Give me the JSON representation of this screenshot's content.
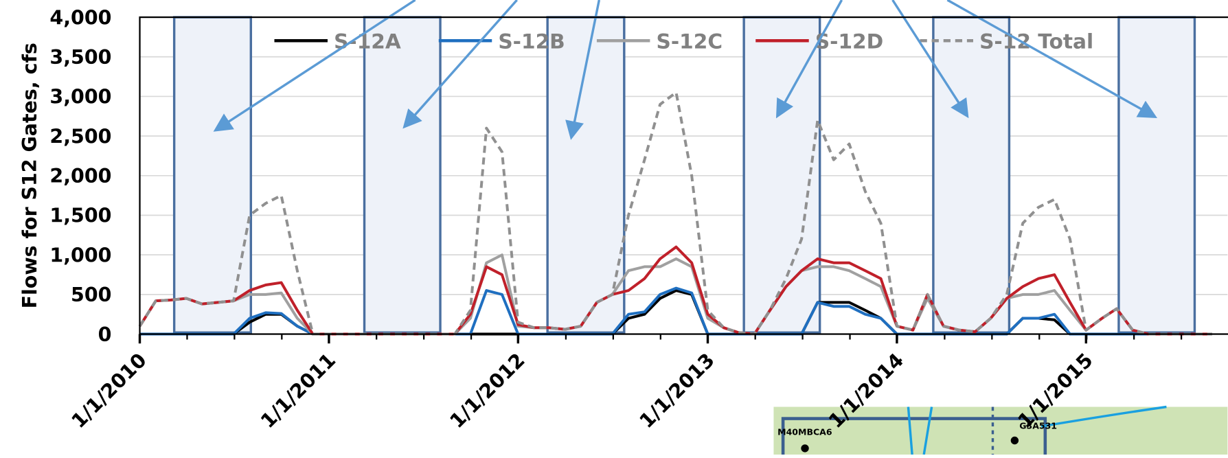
{
  "chart_data": {
    "type": "line",
    "y_label": "Flows for S12 Gates, cfs",
    "x": [
      "1/1/2010",
      "2/1/2010",
      "3/1/2010",
      "4/1/2010",
      "5/1/2010",
      "6/1/2010",
      "7/1/2010",
      "8/1/2010",
      "9/1/2010",
      "10/1/2010",
      "11/1/2010",
      "12/1/2010",
      "1/1/2011",
      "2/1/2011",
      "3/1/2011",
      "4/1/2011",
      "5/1/2011",
      "6/1/2011",
      "7/1/2011",
      "8/1/2011",
      "9/1/2011",
      "10/1/2011",
      "11/1/2011",
      "12/1/2011",
      "1/1/2012",
      "2/1/2012",
      "3/1/2012",
      "4/1/2012",
      "5/1/2012",
      "6/1/2012",
      "7/1/2012",
      "8/1/2012",
      "9/1/2012",
      "10/1/2012",
      "11/1/2012",
      "12/1/2012",
      "1/1/2013",
      "2/1/2013",
      "3/1/2013",
      "4/1/2013",
      "5/1/2013",
      "6/1/2013",
      "7/1/2013",
      "8/1/2013",
      "9/1/2013",
      "10/1/2013",
      "11/1/2013",
      "12/1/2013",
      "1/1/2014",
      "2/1/2014",
      "3/1/2014",
      "4/1/2014",
      "5/1/2014",
      "6/1/2014",
      "7/1/2014",
      "8/1/2014",
      "9/1/2014",
      "10/1/2014",
      "11/1/2014",
      "12/1/2014",
      "1/1/2015",
      "2/1/2015",
      "3/1/2015",
      "4/1/2015",
      "5/1/2015",
      "6/1/2015",
      "7/1/2015",
      "8/1/2015",
      "9/1/2015"
    ],
    "series": [
      {
        "name": "S-12A",
        "color": "#000000",
        "dash": false,
        "values": [
          0,
          0,
          0,
          0,
          0,
          0,
          0,
          150,
          250,
          250,
          100,
          0,
          0,
          0,
          0,
          0,
          0,
          0,
          0,
          0,
          0,
          0,
          0,
          0,
          0,
          0,
          0,
          0,
          0,
          0,
          0,
          200,
          250,
          450,
          550,
          500,
          0,
          0,
          0,
          0,
          0,
          0,
          0,
          400,
          400,
          400,
          300,
          200,
          0,
          0,
          0,
          0,
          0,
          0,
          0,
          0,
          200,
          200,
          180,
          0,
          0,
          0,
          0,
          0,
          0,
          0,
          0,
          0,
          0
        ]
      },
      {
        "name": "S-12B",
        "color": "#1f6fc0",
        "dash": false,
        "values": [
          0,
          0,
          0,
          0,
          0,
          0,
          0,
          200,
          270,
          260,
          100,
          0,
          0,
          0,
          0,
          0,
          0,
          0,
          0,
          0,
          0,
          0,
          550,
          500,
          0,
          0,
          0,
          0,
          0,
          0,
          0,
          250,
          280,
          500,
          580,
          520,
          0,
          0,
          0,
          0,
          0,
          0,
          0,
          400,
          350,
          350,
          250,
          200,
          0,
          0,
          0,
          0,
          0,
          0,
          0,
          0,
          200,
          200,
          250,
          0,
          0,
          0,
          0,
          0,
          0,
          0,
          0,
          0,
          0
        ]
      },
      {
        "name": "S-12C",
        "color": "#a0a0a0",
        "dash": false,
        "values": [
          100,
          420,
          430,
          450,
          380,
          400,
          420,
          500,
          500,
          520,
          200,
          0,
          0,
          0,
          0,
          0,
          0,
          0,
          0,
          0,
          0,
          200,
          900,
          1000,
          100,
          80,
          80,
          60,
          100,
          400,
          500,
          800,
          850,
          850,
          950,
          850,
          200,
          80,
          20,
          0,
          300,
          600,
          800,
          850,
          850,
          800,
          700,
          600,
          100,
          50,
          450,
          100,
          50,
          30,
          200,
          450,
          500,
          500,
          550,
          300,
          50,
          200,
          320,
          50,
          0,
          0,
          0,
          0,
          0
        ]
      },
      {
        "name": "S-12D",
        "color": "#c0202a",
        "dash": false,
        "values": [
          100,
          420,
          430,
          450,
          380,
          400,
          420,
          550,
          620,
          650,
          300,
          0,
          0,
          0,
          0,
          0,
          0,
          0,
          0,
          0,
          0,
          250,
          850,
          750,
          120,
          80,
          80,
          60,
          100,
          400,
          500,
          550,
          700,
          950,
          1100,
          900,
          250,
          80,
          20,
          0,
          300,
          600,
          800,
          950,
          900,
          900,
          800,
          700,
          100,
          50,
          500,
          100,
          50,
          30,
          200,
          450,
          600,
          700,
          750,
          400,
          50,
          200,
          320,
          50,
          0,
          0,
          0,
          0,
          0
        ]
      },
      {
        "name": "S-12 Total",
        "color": "#909090",
        "dash": true,
        "values": [
          100,
          420,
          430,
          450,
          380,
          400,
          420,
          1500,
          1650,
          1750,
          800,
          0,
          0,
          0,
          0,
          0,
          0,
          0,
          0,
          0,
          0,
          300,
          2600,
          2300,
          150,
          80,
          80,
          60,
          100,
          400,
          500,
          1500,
          2200,
          2900,
          3050,
          2000,
          300,
          80,
          20,
          0,
          300,
          700,
          1200,
          2700,
          2200,
          2400,
          1800,
          1400,
          100,
          50,
          500,
          100,
          50,
          30,
          200,
          500,
          1400,
          1600,
          1700,
          1200,
          50,
          200,
          320,
          50,
          0,
          0,
          0,
          0,
          0
        ]
      }
    ],
    "xlim": [
      "1/1/2010",
      "10/1/2015"
    ],
    "xticks": [
      "1/1/2010",
      "1/1/2011",
      "1/1/2012",
      "1/1/2013",
      "1/1/2014",
      "1/1/2015"
    ],
    "ylim": [
      0,
      4000
    ],
    "yticks": [
      0,
      500,
      {
        "value": 1000,
        "label": "1,000"
      },
      {
        "value": 1500,
        "label": "1,500"
      },
      {
        "value": 2000,
        "label": "2,000"
      },
      {
        "value": 2500,
        "label": "2,500"
      },
      {
        "value": 3000,
        "label": "3,000"
      },
      {
        "value": 3500,
        "label": "3,500"
      },
      {
        "value": 4000,
        "label": "4,000"
      }
    ],
    "grid": true
  },
  "inset_labels": [
    "M40MBCA6",
    "G3A531"
  ]
}
